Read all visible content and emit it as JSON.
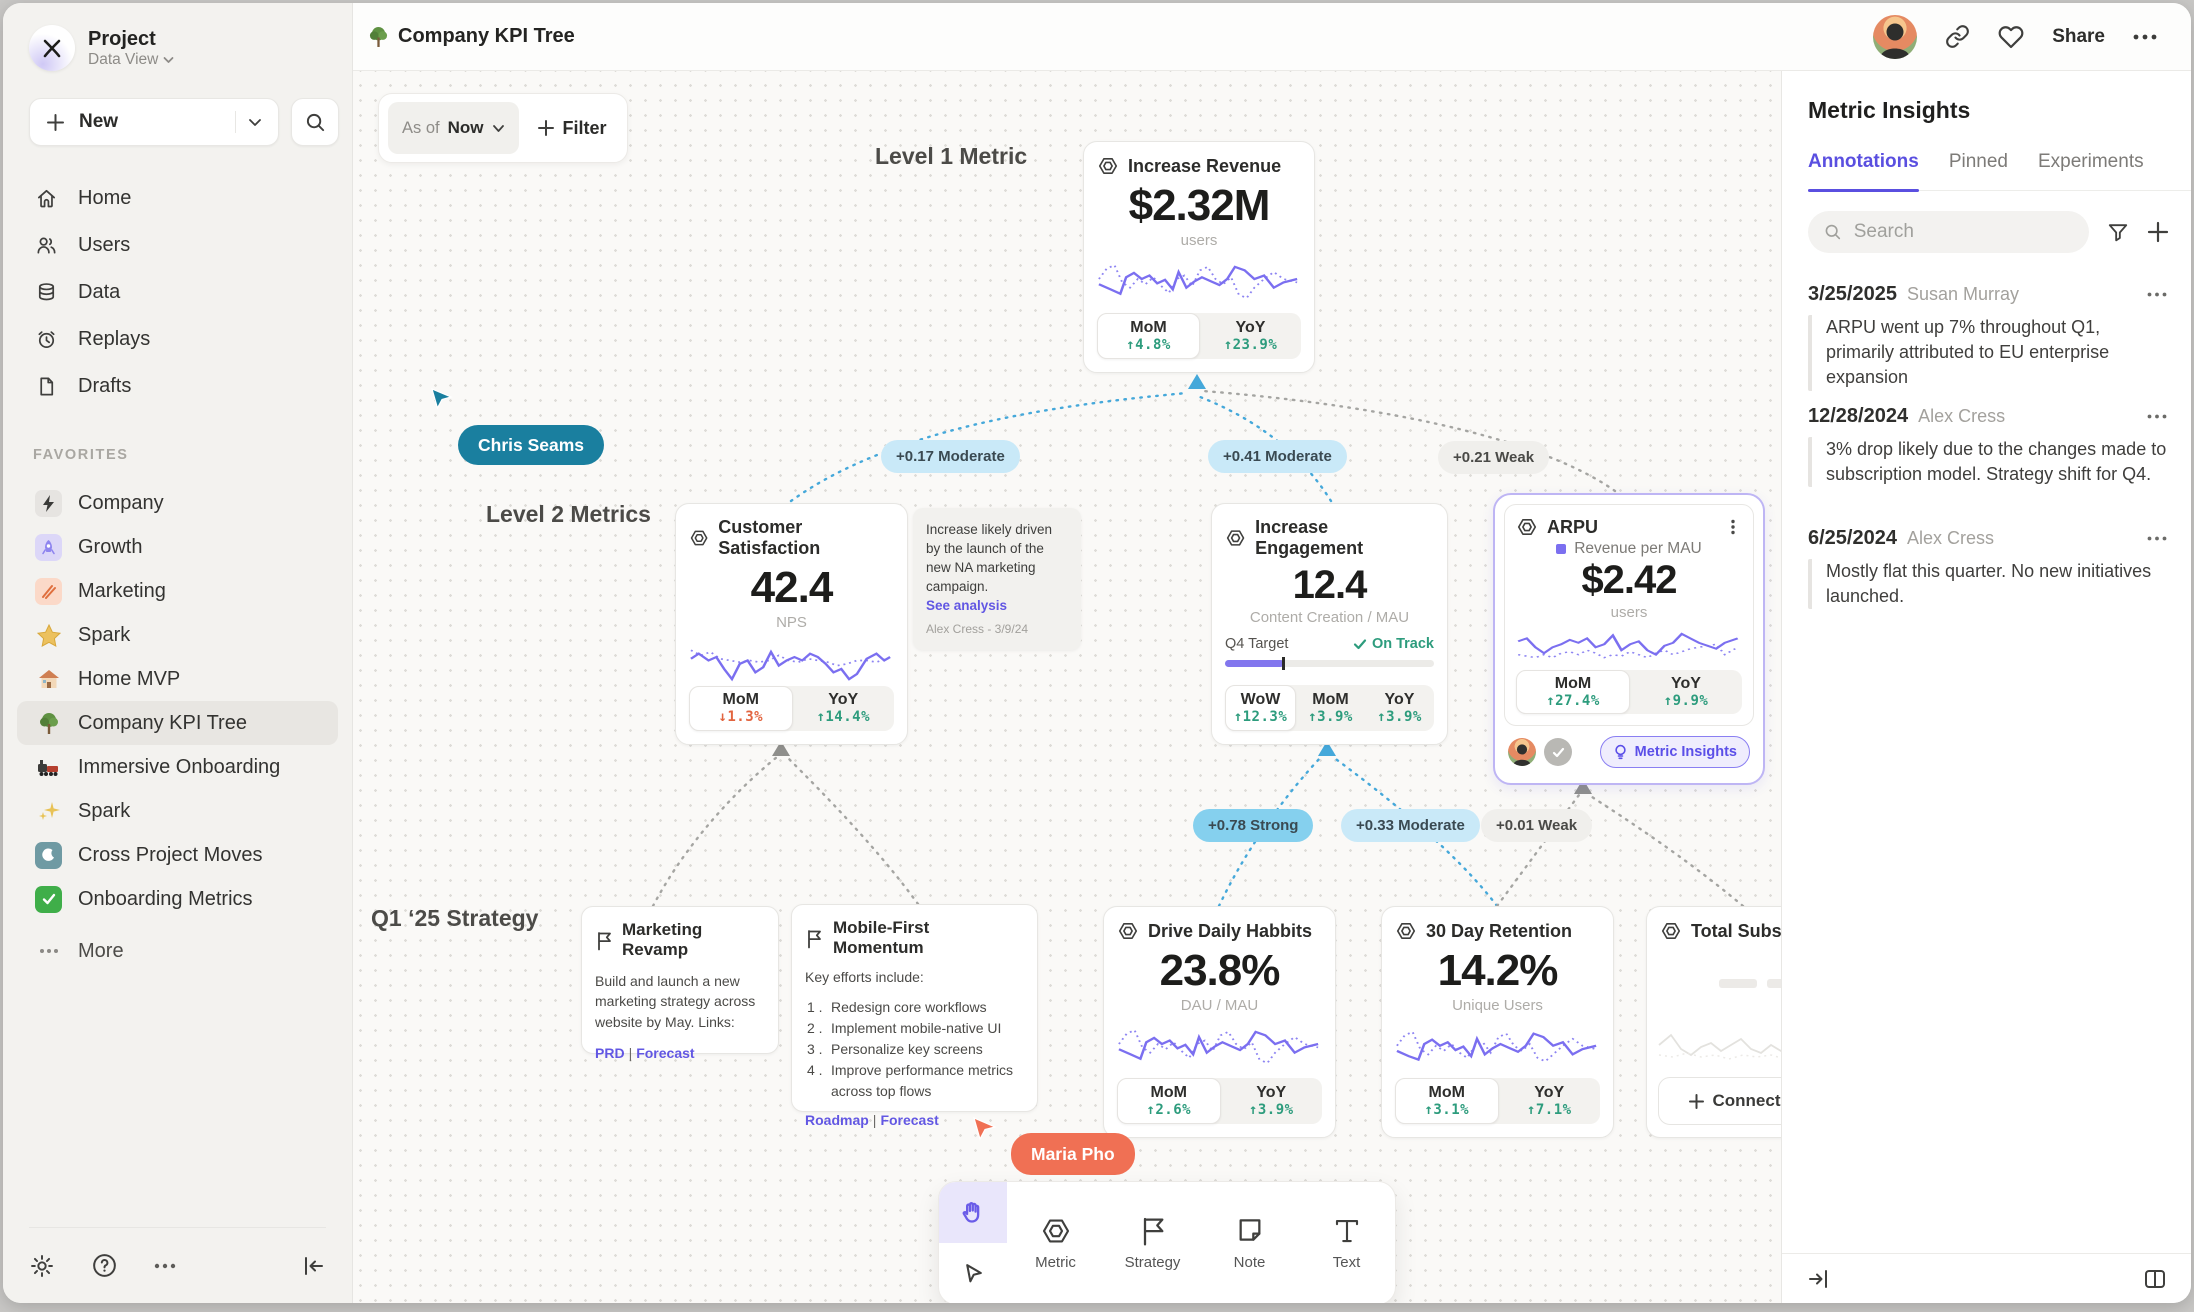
{
  "sidebar": {
    "project_name": "Project",
    "project_view": "Data View",
    "new_label": "New",
    "favorites_title": "FAVORITES",
    "more_label": "More",
    "nav": [
      {
        "label": "Home"
      },
      {
        "label": "Users"
      },
      {
        "label": "Data"
      },
      {
        "label": "Replays"
      },
      {
        "label": "Drafts"
      }
    ],
    "favorites": [
      {
        "icon": "lightning-icon",
        "label": "Company"
      },
      {
        "icon": "rocket-icon",
        "label": "Growth"
      },
      {
        "icon": "pencil-icon",
        "label": "Marketing"
      },
      {
        "icon": "star-icon",
        "label": "Spark"
      },
      {
        "icon": "house-icon",
        "label": "Home MVP"
      },
      {
        "icon": "tree-icon",
        "label": "Company KPI Tree"
      },
      {
        "icon": "train-icon",
        "label": "Immersive Onboarding"
      },
      {
        "icon": "sparkles-icon",
        "label": "Spark"
      },
      {
        "icon": "moon-icon",
        "label": "Cross Project Moves"
      },
      {
        "icon": "check-icon",
        "label": "Onboarding Metrics"
      }
    ]
  },
  "topbar": {
    "title": "Company KPI Tree",
    "share_label": "Share"
  },
  "canvas": {
    "filter": {
      "as_of": "As of",
      "value": "Now",
      "filter_label": "Filter"
    },
    "labels": {
      "level1": "Level 1 Metric",
      "level2": "Level 2 Metrics",
      "strategy": "Q1 ‘25 Strategy"
    },
    "cursors": {
      "chris": "Chris Seams",
      "maria": "Maria Pho"
    },
    "edges": [
      {
        "text": "+0.17 Moderate",
        "strength": "moderate"
      },
      {
        "text": "+0.41 Moderate",
        "strength": "moderate"
      },
      {
        "text": "+0.21 Weak",
        "strength": "weak"
      },
      {
        "text": "+0.78 Strong",
        "strength": "strong"
      },
      {
        "text": "+0.33 Moderate",
        "strength": "moderate"
      },
      {
        "text": "+0.01 Weak",
        "strength": "weak"
      }
    ]
  },
  "metrics": {
    "revenue": {
      "title": "Increase Revenue",
      "value": "$2.32M",
      "unit": "users",
      "stats": [
        {
          "label": "MoM",
          "value": "↑4.8%"
        },
        {
          "label": "YoY",
          "value": "↑23.9%"
        }
      ]
    },
    "satisfaction": {
      "title": "Customer Satisfaction",
      "value": "42.4",
      "unit": "NPS",
      "stats": [
        {
          "label": "MoM",
          "value": "↓1.3%"
        },
        {
          "label": "YoY",
          "value": "↑14.4%"
        }
      ]
    },
    "engagement": {
      "title": "Increase Engagement",
      "value": "12.4",
      "unit": "Content Creation / MAU",
      "target_label": "Q4 Target",
      "target_status": "On Track",
      "target_pct": 28,
      "stats": [
        {
          "label": "WoW",
          "value": "↑12.3%"
        },
        {
          "label": "MoM",
          "value": "↑3.9%"
        },
        {
          "label": "YoY",
          "value": "↑3.9%"
        }
      ]
    },
    "arpu": {
      "title": "ARPU",
      "legend": "Revenue per MAU",
      "value": "$2.42",
      "unit": "users",
      "insights_label": "Metric Insights",
      "stats": [
        {
          "label": "MoM",
          "value": "↑27.4%"
        },
        {
          "label": "YoY",
          "value": "↑9.9%"
        }
      ]
    },
    "daily_habits": {
      "title": "Drive Daily Habbits",
      "value": "23.8%",
      "unit": "DAU / MAU",
      "stats": [
        {
          "label": "MoM",
          "value": "↑2.6%"
        },
        {
          "label": "YoY",
          "value": "↑3.9%"
        }
      ]
    },
    "retention": {
      "title": "30 Day Retention",
      "value": "14.2%",
      "unit": "Unique Users",
      "stats": [
        {
          "label": "MoM",
          "value": "↑3.1%"
        },
        {
          "label": "YoY",
          "value": "↑7.1%"
        }
      ]
    },
    "subscriptions": {
      "title": "Total Subscriptions",
      "connect_label": "Connect"
    }
  },
  "notes": {
    "analysis_note": {
      "text": "Increase likely driven by the launch of the new NA marketing campaign.",
      "link": "See analysis",
      "author_line": "Alex Cress - 3/9/24"
    },
    "marketing_revamp": {
      "title": "Marketing Revamp",
      "body": "Build and launch a new marketing strategy across website by May. Links:",
      "sep": "|",
      "links": [
        {
          "text": "PRD"
        },
        {
          "text": "Forecast"
        }
      ]
    },
    "mobile_first": {
      "title": "Mobile-First Momentum",
      "intro": "Key efforts include:",
      "sep": "|",
      "items": [
        {
          "text": "Redesign core workflows"
        },
        {
          "text": "Implement mobile-native UI"
        },
        {
          "text": "Personalize key screens"
        },
        {
          "text": "Improve performance metrics across top flows"
        }
      ],
      "links": [
        {
          "text": "Roadmap"
        },
        {
          "text": "Forecast"
        }
      ]
    }
  },
  "toolbar": {
    "tools": [
      {
        "icon": "metric-hexagon-icon",
        "label": "Metric"
      },
      {
        "icon": "strategy-flag-icon",
        "label": "Strategy"
      },
      {
        "icon": "note-icon",
        "label": "Note"
      },
      {
        "icon": "text-icon",
        "label": "Text"
      }
    ]
  },
  "insights": {
    "title": "Metric Insights",
    "tabs": [
      {
        "label": "Annotations"
      },
      {
        "label": "Pinned"
      },
      {
        "label": "Experiments"
      }
    ],
    "search_placeholder": "Search",
    "annotations": [
      {
        "date": "3/25/2025",
        "author": "Susan Murray",
        "text": "ARPU went up 7% throughout Q1, primarily attributed to EU enterprise expansion"
      },
      {
        "date": "12/28/2024",
        "author": "Alex Cress",
        "text": "3% drop likely due to the changes made to subscription model. Strategy shift for Q4."
      },
      {
        "date": "6/25/2024",
        "author": "Alex Cress",
        "text": "Mostly flat this quarter. No new initiatives launched."
      }
    ]
  },
  "colors": {
    "accent_purple": "#6257e3",
    "positive_green": "#2d9c7d",
    "negative_orange": "#e2643f",
    "edge_blue": "#45a8da",
    "cursor_teal": "#1a7f9f",
    "cursor_coral": "#f07054"
  }
}
